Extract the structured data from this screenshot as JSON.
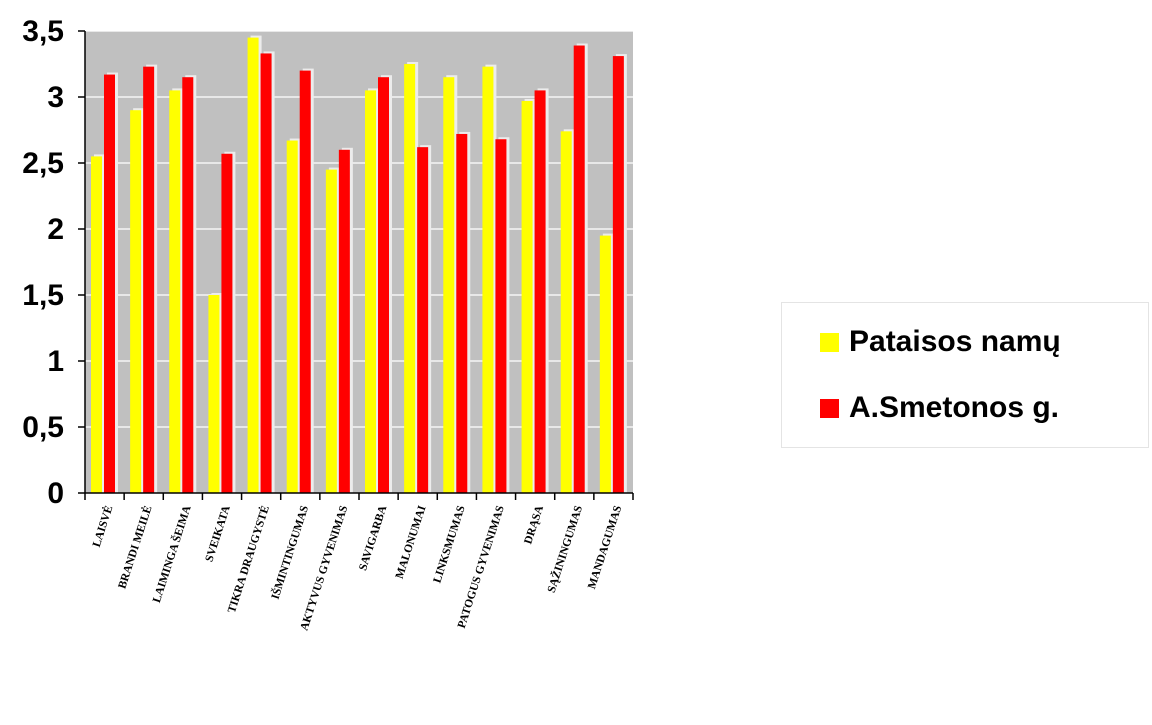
{
  "chart_data": {
    "type": "bar",
    "categories": [
      "LAISVĖ",
      "BRANDI MEILĖ",
      "LAIMINGA ŠEIMA",
      "SVEIKATA",
      "TIKRA DRAUGYSTĖ",
      "IŠMINTINGUMAS",
      "AKTYVUS GYVENIMAS",
      "SAVIGARBA",
      "MALONUMAI",
      "LINKSMUMAS",
      "PATOGUS GYVENIMAS",
      "DRĄSA",
      "SĄŽININGUMAS",
      "MANDAGUMAS"
    ],
    "series": [
      {
        "name": "Pataisos namų",
        "color": "#ffff00",
        "values": [
          2.55,
          2.9,
          3.05,
          1.5,
          3.45,
          2.67,
          2.45,
          3.05,
          3.25,
          3.15,
          3.23,
          2.97,
          2.74,
          1.95
        ]
      },
      {
        "name": "A.Smetonos g.",
        "color": "#ff0000",
        "values": [
          3.17,
          3.23,
          3.15,
          2.57,
          3.33,
          3.2,
          2.6,
          3.15,
          2.62,
          2.72,
          2.68,
          3.05,
          3.39,
          3.31
        ]
      }
    ],
    "ylim": [
      0,
      3.5
    ],
    "yticks": [
      "0",
      "0,5",
      "1",
      "1,5",
      "2",
      "2,5",
      "3",
      "3,5"
    ],
    "grid": true,
    "plot_background": "#c0c0c0",
    "legend_position": "right",
    "title": "",
    "xlabel": "",
    "ylabel": ""
  },
  "legend": {
    "items": [
      {
        "label": "Pataisos namų",
        "color": "#ffff00"
      },
      {
        "label": "A.Smetonos g.",
        "color": "#ff0000"
      }
    ]
  }
}
